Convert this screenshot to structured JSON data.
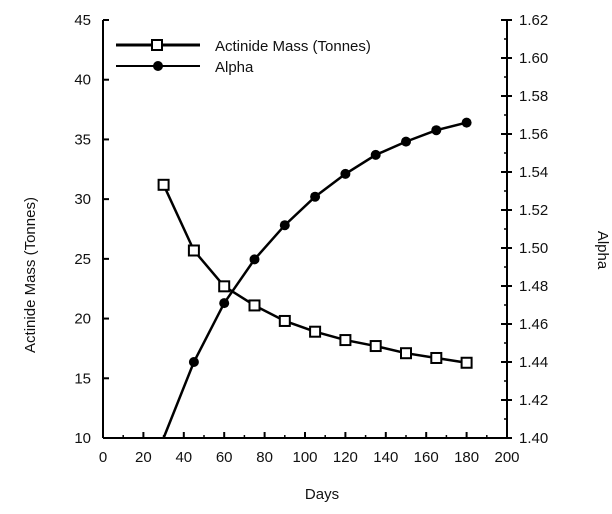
{
  "chart_data": {
    "type": "line",
    "title": "",
    "xlabel": "Days",
    "ylabel": "Actinide Mass (Tonnes)",
    "y2label": "Alpha",
    "xlim": [
      0,
      200
    ],
    "ylim": [
      10,
      45
    ],
    "y2lim": [
      1.4,
      1.62
    ],
    "x_ticks": [
      0,
      20,
      40,
      60,
      80,
      100,
      120,
      140,
      160,
      180,
      200
    ],
    "y_ticks": [
      10,
      15,
      20,
      25,
      30,
      35,
      40,
      45
    ],
    "y2_ticks": [
      "1.40",
      "1.42",
      "1.44",
      "1.46",
      "1.48",
      "1.50",
      "1.52",
      "1.54",
      "1.56",
      "1.58",
      "1.60",
      "1.62"
    ],
    "grid": false,
    "legend_position": "top-left",
    "series": [
      {
        "name": "Actinide Mass (Tonnes)",
        "axis": "left",
        "marker": "square",
        "x": [
          30,
          45,
          60,
          75,
          90,
          105,
          120,
          135,
          150,
          165,
          180
        ],
        "y": [
          31.2,
          25.7,
          22.7,
          21.1,
          19.8,
          18.9,
          18.2,
          17.7,
          17.1,
          16.7,
          16.3
        ]
      },
      {
        "name": "Alpha",
        "axis": "right",
        "marker": "circle",
        "x": [
          30,
          45,
          60,
          75,
          90,
          105,
          120,
          135,
          150,
          165,
          180
        ],
        "y": [
          1.4,
          1.44,
          1.471,
          1.494,
          1.512,
          1.527,
          1.539,
          1.549,
          1.556,
          1.562,
          1.566
        ]
      }
    ]
  }
}
